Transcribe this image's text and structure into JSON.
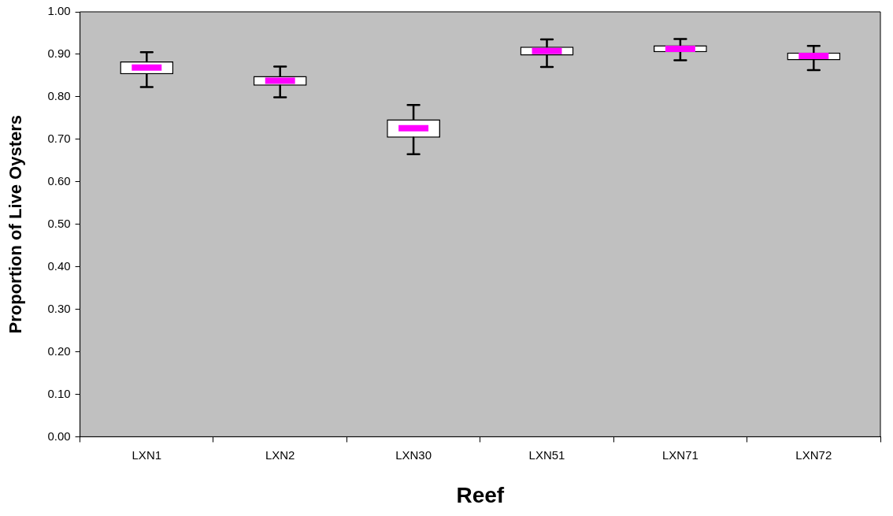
{
  "chart_data": {
    "type": "box",
    "xlabel": "Reef",
    "ylabel": "Proportion of Live Oysters",
    "categories": [
      "LXN1",
      "LXN2",
      "LXN30",
      "LXN51",
      "LXN71",
      "LXN72"
    ],
    "boxes": [
      {
        "low": 0.823,
        "q1": 0.853,
        "median": 0.869,
        "q3": 0.883,
        "high": 0.905
      },
      {
        "low": 0.799,
        "q1": 0.826,
        "median": 0.838,
        "q3": 0.849,
        "high": 0.871
      },
      {
        "low": 0.665,
        "q1": 0.704,
        "median": 0.726,
        "q3": 0.747,
        "high": 0.781
      },
      {
        "low": 0.87,
        "q1": 0.897,
        "median": 0.908,
        "q3": 0.918,
        "high": 0.935
      },
      {
        "low": 0.886,
        "q1": 0.905,
        "median": 0.913,
        "q3": 0.921,
        "high": 0.936
      },
      {
        "low": 0.863,
        "q1": 0.886,
        "median": 0.896,
        "q3": 0.904,
        "high": 0.92
      }
    ],
    "ylim": [
      0,
      1
    ],
    "yticks": [
      {
        "value": 0,
        "label": "0.00"
      },
      {
        "value": 0.1,
        "label": "0.10"
      },
      {
        "value": 0.2,
        "label": "0.20"
      },
      {
        "value": 0.3,
        "label": "0.30"
      },
      {
        "value": 0.4,
        "label": "0.40"
      },
      {
        "value": 0.5,
        "label": "0.50"
      },
      {
        "value": 0.6,
        "label": "0.60"
      },
      {
        "value": 0.7,
        "label": "0.70"
      },
      {
        "value": 0.8,
        "label": "0.80"
      },
      {
        "value": 0.9,
        "label": "0.90"
      },
      {
        "value": 1,
        "label": "1.00"
      }
    ],
    "grid": false,
    "legend": false
  }
}
